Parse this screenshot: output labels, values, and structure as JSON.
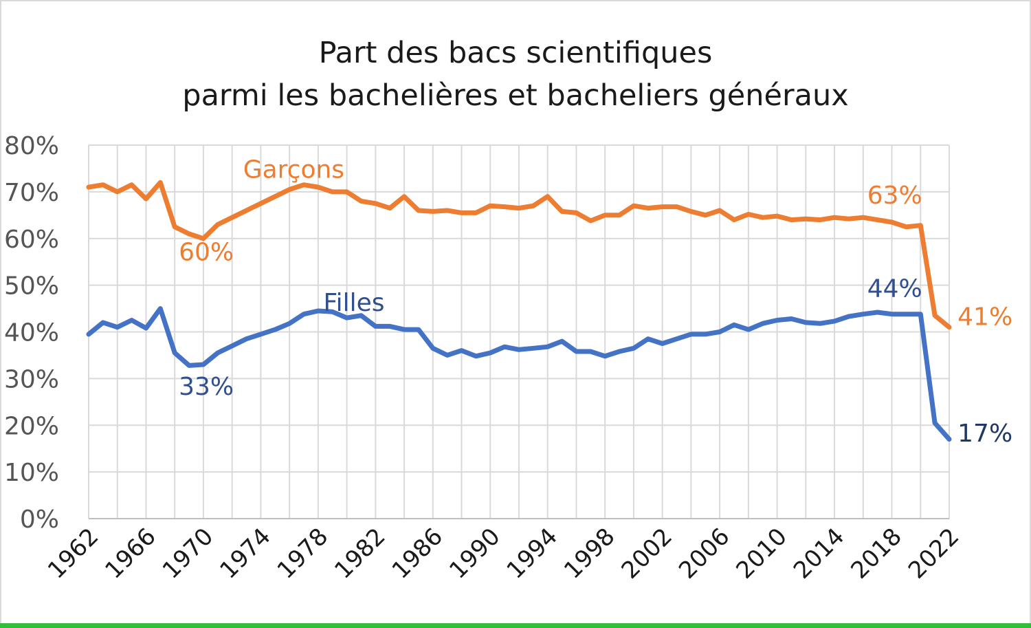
{
  "chart_data": {
    "type": "line",
    "title_lines": [
      "Part des bacs scientifiques",
      "parmi les bachelières et bacheliers généraux"
    ],
    "xlabel": "",
    "ylabel": "",
    "ylim": [
      0,
      80
    ],
    "yticks": [
      "0%",
      "10%",
      "20%",
      "30%",
      "40%",
      "50%",
      "60%",
      "70%",
      "80%"
    ],
    "xlim": [
      1962,
      2022
    ],
    "xticks": [
      "1962",
      "1966",
      "1970",
      "1974",
      "1978",
      "1982",
      "1986",
      "1990",
      "1994",
      "1998",
      "2002",
      "2006",
      "2010",
      "2014",
      "2018",
      "2022"
    ],
    "grid": true,
    "x": [
      1962,
      1963,
      1964,
      1965,
      1966,
      1967,
      1968,
      1969,
      1970,
      1971,
      1972,
      1973,
      1974,
      1975,
      1976,
      1977,
      1978,
      1979,
      1980,
      1981,
      1982,
      1983,
      1984,
      1985,
      1986,
      1987,
      1988,
      1989,
      1990,
      1991,
      1992,
      1993,
      1994,
      1995,
      1996,
      1997,
      1998,
      1999,
      2000,
      2001,
      2002,
      2003,
      2004,
      2005,
      2006,
      2007,
      2008,
      2009,
      2010,
      2011,
      2012,
      2013,
      2014,
      2015,
      2016,
      2017,
      2018,
      2019,
      2020,
      2021,
      2022
    ],
    "series": [
      {
        "name": "Garçons",
        "color": "#ed7d31",
        "values": [
          71.0,
          71.5,
          70.0,
          71.5,
          68.5,
          72.0,
          62.5,
          61.0,
          60.0,
          63.0,
          64.5,
          66.0,
          67.5,
          69.0,
          70.5,
          71.5,
          71.0,
          70.0,
          70.0,
          68.0,
          67.5,
          66.5,
          69.0,
          66.0,
          65.8,
          66.0,
          65.5,
          65.5,
          67.0,
          66.8,
          66.5,
          67.0,
          69.0,
          65.8,
          65.5,
          63.8,
          65.0,
          65.0,
          67.0,
          66.5,
          66.8,
          66.8,
          65.8,
          65.0,
          66.0,
          64.0,
          65.2,
          64.5,
          64.8,
          64.0,
          64.2,
          64.0,
          64.5,
          64.2,
          64.5,
          64.0,
          63.5,
          62.5,
          62.8,
          43.5,
          41.0
        ]
      },
      {
        "name": "Filles",
        "color": "#4472c4",
        "values": [
          39.5,
          42.0,
          41.0,
          42.5,
          40.8,
          45.0,
          35.5,
          32.8,
          33.0,
          35.5,
          37.0,
          38.5,
          39.5,
          40.5,
          41.8,
          43.8,
          44.5,
          44.3,
          43.0,
          43.5,
          41.2,
          41.2,
          40.5,
          40.5,
          36.5,
          35.0,
          36.0,
          34.8,
          35.5,
          36.8,
          36.2,
          36.5,
          36.8,
          38.0,
          35.8,
          35.8,
          34.8,
          35.8,
          36.5,
          38.5,
          37.5,
          38.5,
          39.5,
          39.5,
          40.0,
          41.5,
          40.5,
          41.8,
          42.5,
          42.8,
          42.0,
          41.8,
          42.3,
          43.3,
          43.8,
          44.2,
          43.8,
          43.8,
          43.8,
          20.5,
          17.0
        ]
      }
    ],
    "annotations": [
      {
        "text": "Garçons",
        "x": 1976.3,
        "y": 73.0,
        "color": "#ed7d31"
      },
      {
        "text": "60%",
        "x": 1970.2,
        "y": 55.3,
        "color": "#ed7d31"
      },
      {
        "text": "63%",
        "x": 2018.2,
        "y": 67.5,
        "color": "#ed7d31"
      },
      {
        "text": "41%",
        "x": 2024.5,
        "y": 41.5,
        "color": "#ed7d31"
      },
      {
        "text": "Filles",
        "x": 1980.5,
        "y": 44.5,
        "color": "#2f4f8f"
      },
      {
        "text": "33%",
        "x": 1970.2,
        "y": 26.5,
        "color": "#2f4f8f"
      },
      {
        "text": "44%",
        "x": 2018.2,
        "y": 47.5,
        "color": "#2f4f8f"
      },
      {
        "text": "17%",
        "x": 2024.5,
        "y": 16.5,
        "color": "#1f3864"
      }
    ]
  }
}
